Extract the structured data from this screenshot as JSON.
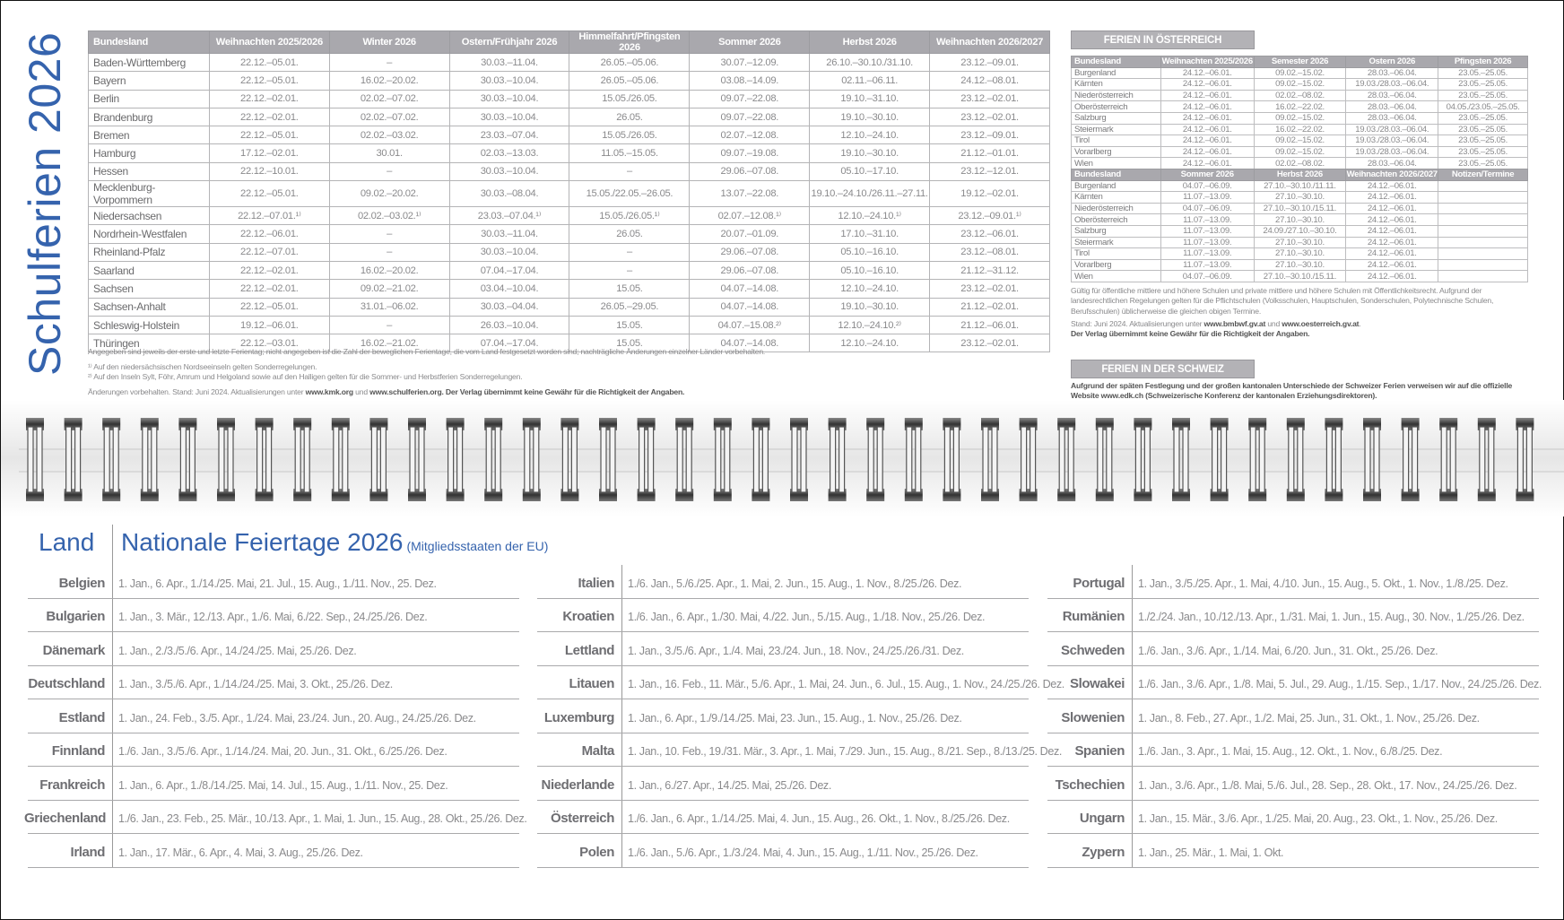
{
  "title": "Schulferien 2026",
  "germany": {
    "headers": [
      "Bundesland",
      "Weihnachten 2025/2026",
      "Winter 2026",
      "Ostern/Frühjahr 2026",
      "Himmelfahrt/Pfingsten 2026",
      "Sommer 2026",
      "Herbst 2026",
      "Weihnachten 2026/2027"
    ],
    "rows": [
      [
        "Baden-Württemberg",
        "22.12.–05.01.",
        "–",
        "30.03.–11.04.",
        "26.05.–05.06.",
        "30.07.–12.09.",
        "26.10.–30.10./31.10.",
        "23.12.–09.01."
      ],
      [
        "Bayern",
        "22.12.–05.01.",
        "16.02.–20.02.",
        "30.03.–10.04.",
        "26.05.–05.06.",
        "03.08.–14.09.",
        "02.11.–06.11.",
        "24.12.–08.01."
      ],
      [
        "Berlin",
        "22.12.–02.01.",
        "02.02.–07.02.",
        "30.03.–10.04.",
        "15.05./26.05.",
        "09.07.–22.08.",
        "19.10.–31.10.",
        "23.12.–02.01."
      ],
      [
        "Brandenburg",
        "22.12.–02.01.",
        "02.02.–07.02.",
        "30.03.–10.04.",
        "26.05.",
        "09.07.–22.08.",
        "19.10.–30.10.",
        "23.12.–02.01."
      ],
      [
        "Bremen",
        "22.12.–05.01.",
        "02.02.–03.02.",
        "23.03.–07.04.",
        "15.05./26.05.",
        "02.07.–12.08.",
        "12.10.–24.10.",
        "23.12.–09.01."
      ],
      [
        "Hamburg",
        "17.12.–02.01.",
        "30.01.",
        "02.03.–13.03.",
        "11.05.–15.05.",
        "09.07.–19.08.",
        "19.10.–30.10.",
        "21.12.–01.01."
      ],
      [
        "Hessen",
        "22.12.–10.01.",
        "–",
        "30.03.–10.04.",
        "–",
        "29.06.–07.08.",
        "05.10.–17.10.",
        "23.12.–12.01."
      ],
      [
        "Mecklenburg-Vorpommern",
        "22.12.–05.01.",
        "09.02.–20.02.",
        "30.03.–08.04.",
        "15.05./22.05.–26.05.",
        "13.07.–22.08.",
        "19.10.–24.10./26.11.–27.11.",
        "19.12.–02.01."
      ],
      [
        "Niedersachsen",
        "22.12.–07.01.¹⁾",
        "02.02.–03.02.¹⁾",
        "23.03.–07.04.¹⁾",
        "15.05./26.05.¹⁾",
        "02.07.–12.08.¹⁾",
        "12.10.–24.10.¹⁾",
        "23.12.–09.01.¹⁾"
      ],
      [
        "Nordrhein-Westfalen",
        "22.12.–06.01.",
        "–",
        "30.03.–11.04.",
        "26.05.",
        "20.07.–01.09.",
        "17.10.–31.10.",
        "23.12.–06.01."
      ],
      [
        "Rheinland-Pfalz",
        "22.12.–07.01.",
        "–",
        "30.03.–10.04.",
        "–",
        "29.06.–07.08.",
        "05.10.–16.10.",
        "23.12.–08.01."
      ],
      [
        "Saarland",
        "22.12.–02.01.",
        "16.02.–20.02.",
        "07.04.–17.04.",
        "–",
        "29.06.–07.08.",
        "05.10.–16.10.",
        "21.12.–31.12."
      ],
      [
        "Sachsen",
        "22.12.–02.01.",
        "09.02.–21.02.",
        "03.04.–10.04.",
        "15.05.",
        "04.07.–14.08.",
        "12.10.–24.10.",
        "23.12.–02.01."
      ],
      [
        "Sachsen-Anhalt",
        "22.12.–05.01.",
        "31.01.–06.02.",
        "30.03.–04.04.",
        "26.05.–29.05.",
        "04.07.–14.08.",
        "19.10.–30.10.",
        "21.12.–02.01."
      ],
      [
        "Schleswig-Holstein",
        "19.12.–06.01.",
        "–",
        "26.03.–10.04.",
        "15.05.",
        "04.07.–15.08.²⁾",
        "12.10.–24.10.²⁾",
        "21.12.–06.01."
      ],
      [
        "Thüringen",
        "22.12.–03.01.",
        "16.02.–21.02.",
        "07.04.–17.04.",
        "15.05.",
        "04.07.–14.08.",
        "12.10.–24.10.",
        "23.12.–02.01."
      ]
    ],
    "note_main": "Angegeben sind jeweils der erste und letzte Ferientag; nicht angegeben ist die Zahl der beweglichen Ferientage, die vom Land festgesetzt worden sind; nachträgliche Änderungen einzelner Länder vorbehalten.",
    "footnote_1": "¹⁾ Auf den niedersächsischen Nordseeinseln gelten Sonderregelungen.",
    "footnote_2": "²⁾ Auf den Inseln Sylt, Föhr, Amrum und Helgoland sowie auf den Halligen gelten für die Sommer- und Herbstferien Sonderregelungen.",
    "update_prefix": "Änderungen vorbehalten. Stand: Juni 2024. Aktualisierungen unter ",
    "link_1": "www.kmk.org",
    "und": " und ",
    "link_2": "www.schulferien.org",
    "disclaimer": ". Der Verlag übernimmt keine Gewähr für die Richtigkeit der Angaben."
  },
  "austria": {
    "banner": "FERIEN IN ÖSTERREICH",
    "table1": {
      "headers": [
        "Bundesland",
        "Weihnachten 2025/2026",
        "Semester 2026",
        "Ostern 2026",
        "Pfingsten 2026"
      ],
      "rows": [
        [
          "Burgenland",
          "24.12.–06.01.",
          "09.02.–15.02.",
          "28.03.–06.04.",
          "23.05.–25.05."
        ],
        [
          "Kärnten",
          "24.12.–06.01.",
          "09.02.–15.02.",
          "19.03./28.03.–06.04.",
          "23.05.–25.05."
        ],
        [
          "Niederösterreich",
          "24.12.–06.01.",
          "02.02.–08.02.",
          "28.03.–06.04.",
          "23.05.–25.05."
        ],
        [
          "Oberösterreich",
          "24.12.–06.01.",
          "16.02.–22.02.",
          "28.03.–06.04.",
          "04.05./23.05.–25.05."
        ],
        [
          "Salzburg",
          "24.12.–06.01.",
          "09.02.–15.02.",
          "28.03.–06.04.",
          "23.05.–25.05."
        ],
        [
          "Steiermark",
          "24.12.–06.01.",
          "16.02.–22.02.",
          "19.03./28.03.–06.04.",
          "23.05.–25.05."
        ],
        [
          "Tirol",
          "24.12.–06.01.",
          "09.02.–15.02.",
          "19.03./28.03.–06.04.",
          "23.05.–25.05."
        ],
        [
          "Vorarlberg",
          "24.12.–06.01.",
          "09.02.–15.02.",
          "19.03./28.03.–06.04.",
          "23.05.–25.05."
        ],
        [
          "Wien",
          "24.12.–06.01.",
          "02.02.–08.02.",
          "28.03.–06.04.",
          "23.05.–25.05."
        ]
      ]
    },
    "table2": {
      "headers": [
        "Bundesland",
        "Sommer 2026",
        "Herbst 2026",
        "Weihnachten 2026/2027",
        "Notizen/Termine"
      ],
      "rows": [
        [
          "Burgenland",
          "04.07.–06.09.",
          "27.10.–30.10./11.11.",
          "24.12.–06.01.",
          ""
        ],
        [
          "Kärnten",
          "11.07.–13.09.",
          "27.10.–30.10.",
          "24.12.–06.01.",
          ""
        ],
        [
          "Niederösterreich",
          "04.07.–06.09.",
          "27.10.–30.10./15.11.",
          "24.12.–06.01.",
          ""
        ],
        [
          "Oberösterreich",
          "11.07.–13.09.",
          "27.10.–30.10.",
          "24.12.–06.01.",
          ""
        ],
        [
          "Salzburg",
          "11.07.–13.09.",
          "24.09./27.10.–30.10.",
          "24.12.–06.01.",
          ""
        ],
        [
          "Steiermark",
          "11.07.–13.09.",
          "27.10.–30.10.",
          "24.12.–06.01.",
          ""
        ],
        [
          "Tirol",
          "11.07.–13.09.",
          "27.10.–30.10.",
          "24.12.–06.01.",
          ""
        ],
        [
          "Vorarlberg",
          "11.07.–13.09.",
          "27.10.–30.10.",
          "24.12.–06.01.",
          ""
        ],
        [
          "Wien",
          "04.07.–06.09.",
          "27.10.–30.10./15.11.",
          "24.12.–06.01.",
          ""
        ]
      ]
    },
    "note": "Gültig für öffentliche mittlere und höhere Schulen und private mittlere und höhere Schulen mit Öffentlichkeitsrecht. Aufgrund der landesrechtlichen Regelungen gelten für die Pflichtschulen (Volksschulen, Hauptschulen, Sonderschulen, Polytechnische Schulen, Berufsschulen) üblicherweise die gleichen obigen Termine.",
    "update_prefix": "Stand: Juni 2024. Aktualisierungen unter ",
    "link_1": "www.bmbwf.gv.at",
    "und": " und ",
    "link_2": "www.oesterreich.gv.at",
    "period": ".",
    "disclaimer": "Der Verlag übernimmt keine Gewähr für die Richtigkeit der Angaben."
  },
  "switzerland": {
    "banner": "FERIEN IN DER SCHWEIZ",
    "text": "Aufgrund der späten Festlegung und der großen kantonalen Unterschiede der Schweizer Ferien verweisen wir auf die offizielle Website www.edk.ch (Schweizerische Konferenz der kantonalen Erziehungsdirektoren)."
  },
  "holidays": {
    "land_label": "Land",
    "title": "Nationale Feiertage 2026",
    "subtitle": "(Mitgliedsstaaten der EU)",
    "columns": [
      [
        {
          "country": "Belgien",
          "dates": "1. Jan., 6. Apr., 1./14./25. Mai, 21. Jul., 15. Aug., 1./11. Nov., 25. Dez."
        },
        {
          "country": "Bulgarien",
          "dates": "1. Jan., 3. Mär., 12./13. Apr., 1./6. Mai, 6./22. Sep., 24./25./26. Dez."
        },
        {
          "country": "Dänemark",
          "dates": "1. Jan., 2./3./5./6. Apr., 14./24./25. Mai, 25./26. Dez."
        },
        {
          "country": "Deutschland",
          "dates": "1. Jan., 3./5./6. Apr., 1./14./24./25. Mai, 3. Okt., 25./26. Dez."
        },
        {
          "country": "Estland",
          "dates": "1. Jan., 24. Feb., 3./5. Apr., 1./24. Mai, 23./24. Jun., 20. Aug., 24./25./26. Dez."
        },
        {
          "country": "Finnland",
          "dates": "1./6. Jan., 3./5./6. Apr., 1./14./24. Mai, 20. Jun., 31. Okt., 6./25./26. Dez."
        },
        {
          "country": "Frankreich",
          "dates": "1. Jan., 6. Apr., 1./8./14./25. Mai, 14. Jul., 15. Aug., 1./11. Nov., 25. Dez."
        },
        {
          "country": "Griechenland",
          "dates": "1./6. Jan., 23. Feb., 25. Mär., 10./13. Apr., 1. Mai, 1. Jun., 15. Aug., 28. Okt., 25./26. Dez."
        },
        {
          "country": "Irland",
          "dates": "1. Jan., 17. Mär., 6. Apr., 4. Mai, 3. Aug., 25./26. Dez."
        }
      ],
      [
        {
          "country": "Italien",
          "dates": "1./6. Jan., 5./6./25. Apr., 1. Mai, 2. Jun., 15. Aug., 1. Nov., 8./25./26. Dez."
        },
        {
          "country": "Kroatien",
          "dates": "1./6. Jan., 6. Apr., 1./30. Mai, 4./22. Jun., 5./15. Aug., 1./18. Nov., 25./26. Dez."
        },
        {
          "country": "Lettland",
          "dates": "1. Jan., 3./5./6. Apr., 1./4. Mai, 23./24. Jun., 18. Nov., 24./25./26./31. Dez."
        },
        {
          "country": "Litauen",
          "dates": "1. Jan., 16. Feb., 11. Mär., 5./6. Apr., 1. Mai, 24. Jun., 6. Jul., 15. Aug., 1. Nov., 24./25./26. Dez."
        },
        {
          "country": "Luxemburg",
          "dates": "1. Jan., 6. Apr., 1./9./14./25. Mai, 23. Jun., 15. Aug., 1. Nov., 25./26. Dez."
        },
        {
          "country": "Malta",
          "dates": "1. Jan., 10. Feb., 19./31. Mär., 3. Apr., 1. Mai, 7./29. Jun., 15. Aug., 8./21. Sep., 8./13./25. Dez."
        },
        {
          "country": "Niederlande",
          "dates": "1. Jan., 6./27. Apr., 14./25. Mai, 25./26. Dez."
        },
        {
          "country": "Österreich",
          "dates": "1./6. Jan., 6. Apr., 1./14./25. Mai, 4. Jun., 15. Aug., 26. Okt., 1. Nov., 8./25./26. Dez."
        },
        {
          "country": "Polen",
          "dates": "1./6. Jan., 5./6. Apr., 1./3./24. Mai, 4. Jun., 15. Aug., 1./11. Nov., 25./26. Dez."
        }
      ],
      [
        {
          "country": "Portugal",
          "dates": "1. Jan., 3./5./25. Apr., 1. Mai, 4./10. Jun., 15. Aug., 5. Okt., 1. Nov., 1./8./25. Dez."
        },
        {
          "country": "Rumänien",
          "dates": "1./2./24. Jan., 10./12./13. Apr., 1./31. Mai, 1. Jun., 15. Aug., 30. Nov., 1./25./26. Dez."
        },
        {
          "country": "Schweden",
          "dates": "1./6. Jan., 3./6. Apr., 1./14. Mai, 6./20. Jun., 31. Okt., 25./26. Dez."
        },
        {
          "country": "Slowakei",
          "dates": "1./6. Jan., 3./6. Apr., 1./8. Mai, 5. Jul., 29. Aug., 1./15. Sep., 1./17. Nov., 24./25./26. Dez."
        },
        {
          "country": "Slowenien",
          "dates": "1. Jan., 8. Feb., 27. Apr., 1./2. Mai, 25. Jun., 31. Okt., 1. Nov., 25./26. Dez."
        },
        {
          "country": "Spanien",
          "dates": "1./6. Jan., 3. Apr., 1. Mai, 15. Aug., 12. Okt., 1. Nov., 6./8./25. Dez."
        },
        {
          "country": "Tschechien",
          "dates": "1. Jan., 3./6. Apr., 1./8. Mai, 5./6. Jul., 28. Sep., 28. Okt., 17. Nov., 24./25./26. Dez."
        },
        {
          "country": "Ungarn",
          "dates": "1. Jan., 15. Mär., 3./6. Apr., 1./25. Mai, 20. Aug., 23. Okt., 1. Nov., 25./26. Dez."
        },
        {
          "country": "Zypern",
          "dates": "1. Jan., 25. Mär., 1. Mai, 1. Okt."
        }
      ]
    ]
  },
  "colors": {
    "accent": "#3563ad",
    "header_gray": "#a9a8ad",
    "text_gray": "#8a8a8c"
  }
}
